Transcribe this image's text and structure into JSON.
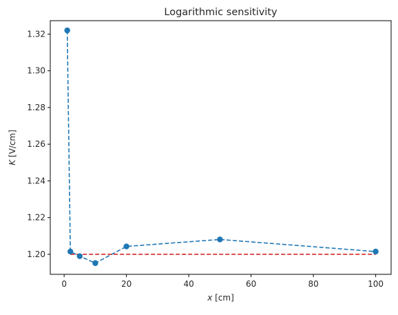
{
  "chart_data": {
    "type": "line",
    "title": "Logarithmic sensitivity",
    "xlabel": "x [cm]",
    "xlabel_var": "x",
    "xlabel_unit": " [cm]",
    "ylabel": "K [V/cm]",
    "ylabel_var": "K",
    "ylabel_unit": " [V/cm]",
    "xlim": [
      -4.45,
      104.95
    ],
    "ylim": [
      1.1891,
      1.3273
    ],
    "x_ticks": [
      0,
      20,
      40,
      60,
      80,
      100
    ],
    "y_ticks": [
      1.2,
      1.22,
      1.24,
      1.26,
      1.28,
      1.3,
      1.32
    ],
    "y_tick_labels": [
      "1.20",
      "1.22",
      "1.24",
      "1.26",
      "1.28",
      "1.30",
      "1.32"
    ],
    "grid": false,
    "series": [
      {
        "x": [
          1,
          2,
          5,
          10,
          20,
          50,
          100
        ],
        "y": [
          1.322,
          1.2015,
          1.199,
          1.1952,
          1.2043,
          1.2081,
          1.2015
        ],
        "color": "#1f77b4",
        "linestyle": "dashed",
        "marker": "circle"
      },
      {
        "x": [
          2,
          100
        ],
        "y": [
          1.2,
          1.2
        ],
        "color": "#d62728",
        "linestyle": "dashed",
        "marker": "none"
      }
    ]
  }
}
